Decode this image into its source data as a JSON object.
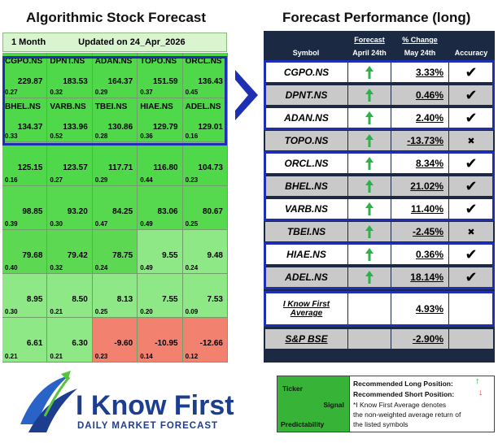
{
  "left_title": "Algorithmic Stock Forecast",
  "right_title": "Forecast Performance (long)",
  "header": {
    "horizon": "1 Month",
    "updated": "Updated on 24_Apr_2026"
  },
  "grid": [
    [
      {
        "symbol": "CGPO.NS",
        "signal": "229.87",
        "pred": "0.27",
        "color": "#4fd94a"
      },
      {
        "symbol": "DPNT.NS",
        "signal": "183.53",
        "pred": "0.32",
        "color": "#4fd94a"
      },
      {
        "symbol": "ADAN.NS",
        "signal": "164.37",
        "pred": "0.29",
        "color": "#4fd94a"
      },
      {
        "symbol": "TOPO.NS",
        "signal": "151.59",
        "pred": "0.37",
        "color": "#4fd94a"
      },
      {
        "symbol": "ORCL.NS",
        "signal": "136.43",
        "pred": "0.45",
        "color": "#4fd94a"
      }
    ],
    [
      {
        "symbol": "BHEL.NS",
        "signal": "134.37",
        "pred": "0.33",
        "color": "#4fd94a"
      },
      {
        "symbol": "VARB.NS",
        "signal": "133.96",
        "pred": "0.52",
        "color": "#4fd94a"
      },
      {
        "symbol": "TBEI.NS",
        "signal": "130.86",
        "pred": "0.28",
        "color": "#4fd94a"
      },
      {
        "symbol": "HIAE.NS",
        "signal": "129.79",
        "pred": "0.36",
        "color": "#4fd94a"
      },
      {
        "symbol": "ADEL.NS",
        "signal": "129.01",
        "pred": "0.16",
        "color": "#4fd94a"
      }
    ],
    [
      {
        "symbol": "",
        "signal": "125.15",
        "pred": "0.16",
        "color": "#4fd94a"
      },
      {
        "symbol": "",
        "signal": "123.57",
        "pred": "0.27",
        "color": "#4fd94a"
      },
      {
        "symbol": "",
        "signal": "117.71",
        "pred": "0.29",
        "color": "#4fd94a"
      },
      {
        "symbol": "",
        "signal": "116.80",
        "pred": "0.44",
        "color": "#4fd94a"
      },
      {
        "symbol": "",
        "signal": "104.73",
        "pred": "0.23",
        "color": "#4fd94a"
      }
    ],
    [
      {
        "symbol": "",
        "signal": "98.85",
        "pred": "0.39",
        "color": "#56d94e"
      },
      {
        "symbol": "",
        "signal": "93.20",
        "pred": "0.30",
        "color": "#56d94e"
      },
      {
        "symbol": "",
        "signal": "84.25",
        "pred": "0.47",
        "color": "#56d94e"
      },
      {
        "symbol": "",
        "signal": "83.06",
        "pred": "0.49",
        "color": "#56d94e"
      },
      {
        "symbol": "",
        "signal": "80.67",
        "pred": "0.25",
        "color": "#56d94e"
      }
    ],
    [
      {
        "symbol": "",
        "signal": "79.68",
        "pred": "0.40",
        "color": "#5cd852"
      },
      {
        "symbol": "",
        "signal": "79.42",
        "pred": "0.32",
        "color": "#5cd852"
      },
      {
        "symbol": "",
        "signal": "78.75",
        "pred": "0.24",
        "color": "#5cd852"
      },
      {
        "symbol": "",
        "signal": "9.55",
        "pred": "0.49",
        "color": "#8ee886"
      },
      {
        "symbol": "",
        "signal": "9.48",
        "pred": "0.24",
        "color": "#8ee886"
      }
    ],
    [
      {
        "symbol": "",
        "signal": "8.95",
        "pred": "0.30",
        "color": "#8ee886"
      },
      {
        "symbol": "",
        "signal": "8.50",
        "pred": "0.21",
        "color": "#8ee886"
      },
      {
        "symbol": "",
        "signal": "8.13",
        "pred": "0.25",
        "color": "#8ee886"
      },
      {
        "symbol": "",
        "signal": "7.55",
        "pred": "0.20",
        "color": "#8ee886"
      },
      {
        "symbol": "",
        "signal": "7.53",
        "pred": "0.09",
        "color": "#8ee886"
      }
    ],
    [
      {
        "symbol": "",
        "signal": "6.61",
        "pred": "0.21",
        "color": "#8ee886"
      },
      {
        "symbol": "",
        "signal": "6.30",
        "pred": "0.21",
        "color": "#8ee886"
      },
      {
        "symbol": "",
        "signal": "-9.60",
        "pred": "0.23",
        "color": "#f2826f"
      },
      {
        "symbol": "",
        "signal": "-10.95",
        "pred": "0.14",
        "color": "#f2826f"
      },
      {
        "symbol": "",
        "signal": "-12.66",
        "pred": "0.12",
        "color": "#f2826f"
      }
    ]
  ],
  "table_headers": {
    "symbol": "Symbol",
    "forecast": "Forecast",
    "forecast_date": "April 24th",
    "change": "% Change",
    "change_date": "May 24th",
    "accuracy": "Accuracy"
  },
  "rows": [
    {
      "symbol": "CGPO.NS",
      "change": "3.33%",
      "arrow": "up",
      "accuracy": "✔",
      "shade": "w"
    },
    {
      "symbol": "DPNT.NS",
      "change": "0.46%",
      "arrow": "up",
      "accuracy": "✔",
      "shade": "g"
    },
    {
      "symbol": "ADAN.NS",
      "change": "2.40%",
      "arrow": "up",
      "accuracy": "✔",
      "shade": "w"
    },
    {
      "symbol": "TOPO.NS",
      "change": "-13.73%",
      "arrow": "up",
      "accuracy": "✖",
      "shade": "g"
    },
    {
      "symbol": "ORCL.NS",
      "change": "8.34%",
      "arrow": "up",
      "accuracy": "✔",
      "shade": "w"
    },
    {
      "symbol": "BHEL.NS",
      "change": "21.02%",
      "arrow": "up",
      "accuracy": "✔",
      "shade": "g"
    },
    {
      "symbol": "VARB.NS",
      "change": "11.40%",
      "arrow": "up",
      "accuracy": "✔",
      "shade": "w"
    },
    {
      "symbol": "TBEI.NS",
      "change": "-2.45%",
      "arrow": "up",
      "accuracy": "✖",
      "shade": "g"
    },
    {
      "symbol": "HIAE.NS",
      "change": "0.36%",
      "arrow": "up",
      "accuracy": "✔",
      "shade": "w"
    },
    {
      "symbol": "ADEL.NS",
      "change": "18.14%",
      "arrow": "up",
      "accuracy": "✔",
      "shade": "g"
    }
  ],
  "average": {
    "label_line1": "I Know First",
    "label_line2": "Average",
    "change": "4.93%"
  },
  "benchmark": {
    "label": "S&P BSE",
    "change": "-2.90%"
  },
  "legend": {
    "ticker": "Ticker",
    "signal": "Signal",
    "predictability": "Predictability",
    "long": "Recommended Long Position:",
    "short": "Recommended Short Position:",
    "note_line1": "*I Know First Average denotes",
    "note_line2": "the non-weighted average return of",
    "note_line3": "the listed symbols"
  },
  "logo": {
    "brand": "I Know First",
    "tagline": "DAILY MARKET FORECAST"
  },
  "colors": {
    "accent_blue": "#1f2fb3",
    "table_bg": "#1b2a42",
    "green_arrow": "#2bb24a",
    "red_arrow": "#e04040"
  }
}
